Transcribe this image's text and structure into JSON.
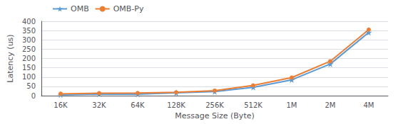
{
  "chart_data": {
    "type": "line",
    "xlabel": "Message Size (Byte)",
    "ylabel": "Latency (us)",
    "categories": [
      "16K",
      "32K",
      "64K",
      "128K",
      "256K",
      "512K",
      "1M",
      "2M",
      "4M"
    ],
    "series": [
      {
        "name": "OMB",
        "color": "#5B9BD5",
        "marker": "star",
        "values": [
          5,
          9,
          8,
          15,
          22,
          45,
          85,
          170,
          340
        ]
      },
      {
        "name": "OMB-Py",
        "color": "#ED7D31",
        "marker": "circle",
        "values": [
          10,
          13,
          14,
          18,
          27,
          55,
          97,
          185,
          355
        ]
      }
    ],
    "ylim": [
      0,
      400
    ],
    "yticks": [
      0,
      50,
      100,
      150,
      200,
      250,
      300,
      350,
      400
    ],
    "grid": true,
    "legend": "upper left"
  }
}
